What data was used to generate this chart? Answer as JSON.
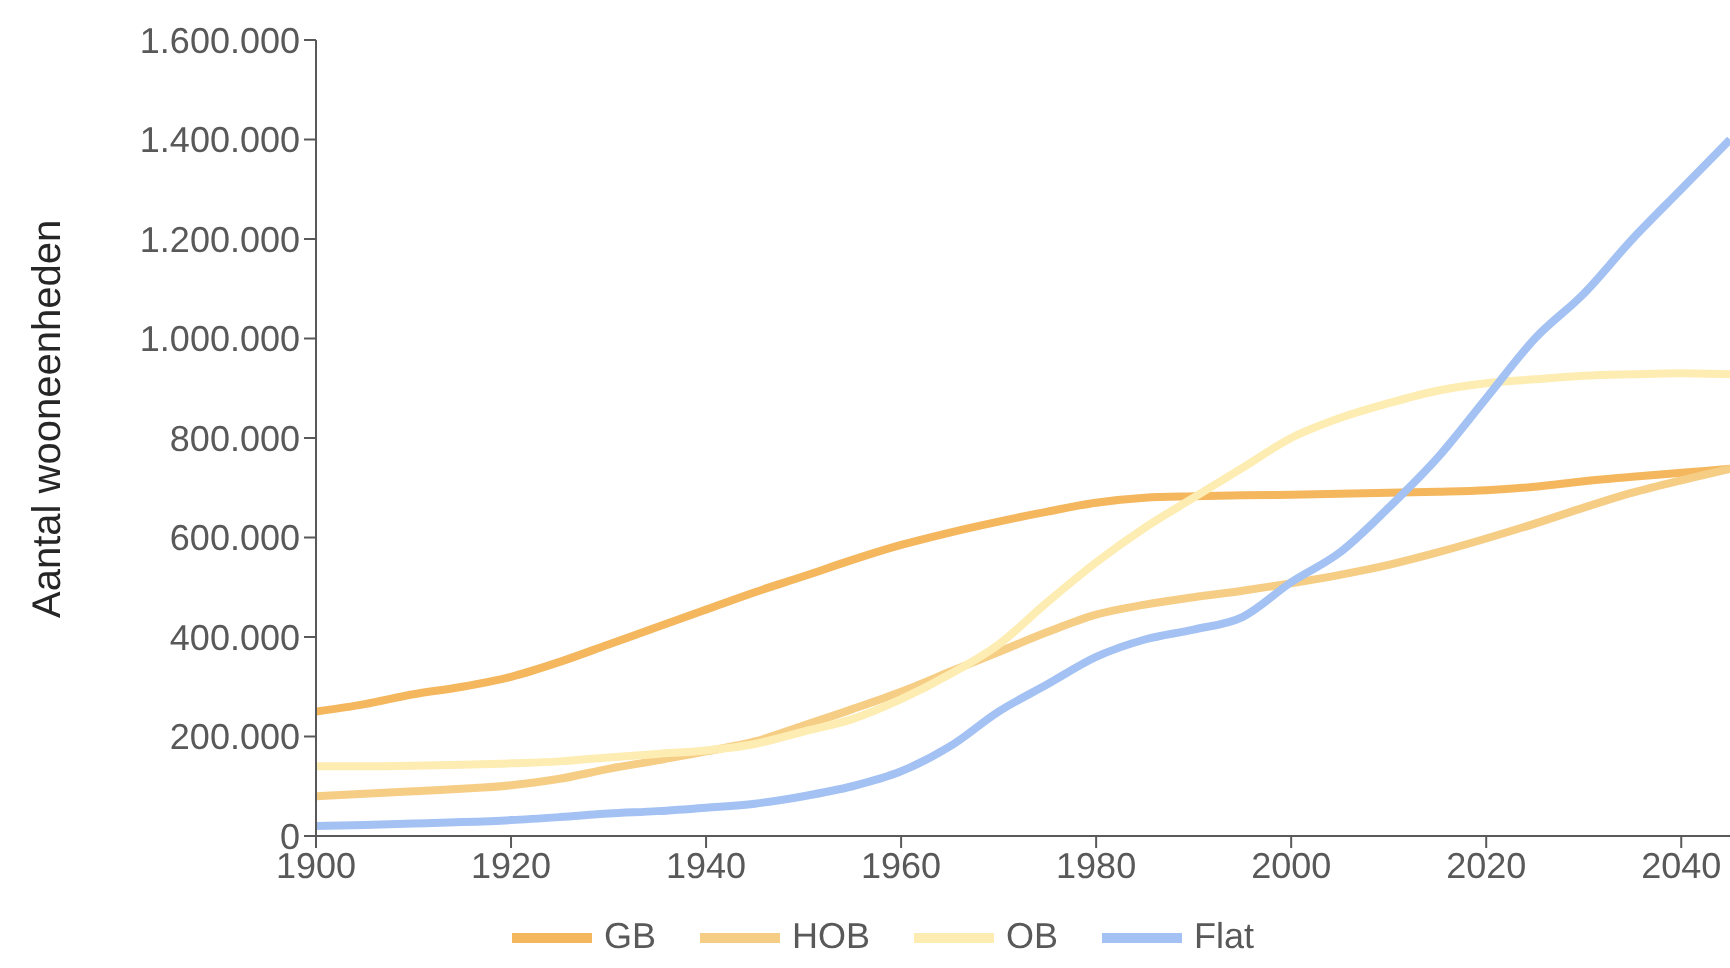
{
  "chart_data": {
    "type": "line",
    "ylabel": "Aantal wooneenheden",
    "x": [
      1900,
      1905,
      1910,
      1915,
      1920,
      1925,
      1930,
      1935,
      1940,
      1945,
      1950,
      1955,
      1960,
      1965,
      1970,
      1975,
      1980,
      1985,
      1990,
      1995,
      2000,
      2005,
      2010,
      2015,
      2020,
      2025,
      2030,
      2035,
      2040,
      2045
    ],
    "series": [
      {
        "name": "GB",
        "color": "#f4b75e",
        "values": [
          250000,
          265000,
          285000,
          300000,
          320000,
          350000,
          385000,
          420000,
          455000,
          490000,
          522000,
          555000,
          585000,
          610000,
          632000,
          652000,
          670000,
          680000,
          683000,
          685000,
          686000,
          688000,
          690000,
          692000,
          695000,
          702000,
          713000,
          722000,
          730000,
          738000
        ]
      },
      {
        "name": "HOB",
        "color": "#f6cd85",
        "values": [
          80000,
          85000,
          90000,
          95000,
          102000,
          115000,
          135000,
          152000,
          170000,
          190000,
          222000,
          255000,
          290000,
          330000,
          370000,
          410000,
          445000,
          465000,
          480000,
          493000,
          508000,
          525000,
          545000,
          570000,
          598000,
          628000,
          660000,
          690000,
          715000,
          738000
        ]
      },
      {
        "name": "OB",
        "color": "#fdedb2",
        "values": [
          140000,
          140000,
          141000,
          143000,
          146000,
          150000,
          158000,
          165000,
          172000,
          185000,
          210000,
          235000,
          275000,
          325000,
          385000,
          470000,
          550000,
          620000,
          680000,
          740000,
          800000,
          840000,
          870000,
          895000,
          910000,
          918000,
          925000,
          928000,
          930000,
          928000
        ]
      },
      {
        "name": "Flat",
        "color": "#a3c1f3",
        "values": [
          20000,
          22000,
          25000,
          28000,
          32000,
          38000,
          45000,
          50000,
          57000,
          65000,
          80000,
          100000,
          130000,
          180000,
          250000,
          305000,
          360000,
          395000,
          415000,
          440000,
          510000,
          570000,
          660000,
          760000,
          880000,
          1000000,
          1090000,
          1200000,
          1300000,
          1400000
        ]
      }
    ],
    "xlim": [
      1900,
      2045
    ],
    "xticks": [
      1900,
      1920,
      1940,
      1960,
      1980,
      2000,
      2020,
      2040
    ],
    "ylim": [
      0,
      1600000
    ],
    "yticks": [
      0,
      {
        "value": 200000,
        "label": "200.000"
      },
      {
        "value": 400000,
        "label": "400.000"
      },
      {
        "value": 600000,
        "label": "600.000"
      },
      {
        "value": 800000,
        "label": "800.000"
      },
      {
        "value": 1000000,
        "label": "1.000.000"
      },
      {
        "value": 1200000,
        "label": "1.200.000"
      },
      {
        "value": 1400000,
        "label": "1.400.000"
      },
      {
        "value": 1600000,
        "label": "1.600.000"
      }
    ],
    "grid": false,
    "legend": "bottom",
    "marker": "none",
    "line_style": "solid"
  }
}
